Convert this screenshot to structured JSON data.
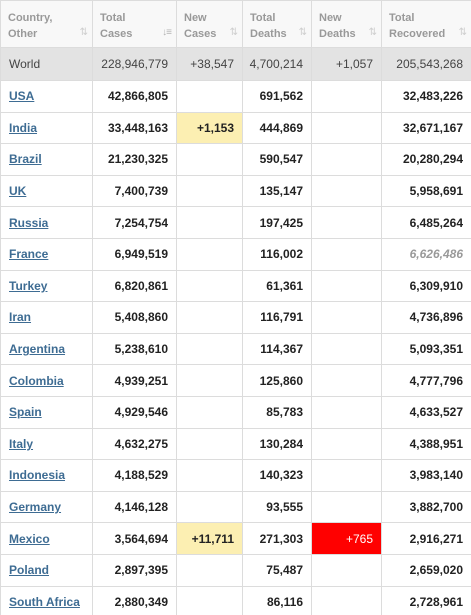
{
  "headers": [
    {
      "line1": "Country,",
      "line2": "Other",
      "sort_icon": "sort-both-icon"
    },
    {
      "line1": "Total",
      "line2": "Cases",
      "sort_icon": "sort-desc-icon"
    },
    {
      "line1": "New",
      "line2": "Cases",
      "sort_icon": "sort-both-icon"
    },
    {
      "line1": "Total",
      "line2": "Deaths",
      "sort_icon": "sort-both-icon"
    },
    {
      "line1": "New",
      "line2": "Deaths",
      "sort_icon": "sort-both-icon"
    },
    {
      "line1": "Total",
      "line2": "Recovered",
      "sort_icon": "sort-both-icon"
    }
  ],
  "world": {
    "country": "World",
    "total_cases": "228,946,779",
    "new_cases": "+38,547",
    "total_deaths": "4,700,214",
    "new_deaths": "+1,057",
    "total_recovered": "205,543,268"
  },
  "rows": [
    {
      "country": "USA",
      "total_cases": "42,866,805",
      "new_cases": "",
      "total_deaths": "691,562",
      "new_deaths": "",
      "total_recovered": "32,483,226"
    },
    {
      "country": "India",
      "total_cases": "33,448,163",
      "new_cases": "+1,153",
      "total_deaths": "444,869",
      "new_deaths": "",
      "total_recovered": "32,671,167"
    },
    {
      "country": "Brazil",
      "total_cases": "21,230,325",
      "new_cases": "",
      "total_deaths": "590,547",
      "new_deaths": "",
      "total_recovered": "20,280,294"
    },
    {
      "country": "UK",
      "total_cases": "7,400,739",
      "new_cases": "",
      "total_deaths": "135,147",
      "new_deaths": "",
      "total_recovered": "5,958,691"
    },
    {
      "country": "Russia",
      "total_cases": "7,254,754",
      "new_cases": "",
      "total_deaths": "197,425",
      "new_deaths": "",
      "total_recovered": "6,485,264"
    },
    {
      "country": "France",
      "total_cases": "6,949,519",
      "new_cases": "",
      "total_deaths": "116,002",
      "new_deaths": "",
      "total_recovered": "6,626,486"
    },
    {
      "country": "Turkey",
      "total_cases": "6,820,861",
      "new_cases": "",
      "total_deaths": "61,361",
      "new_deaths": "",
      "total_recovered": "6,309,910"
    },
    {
      "country": "Iran",
      "total_cases": "5,408,860",
      "new_cases": "",
      "total_deaths": "116,791",
      "new_deaths": "",
      "total_recovered": "4,736,896"
    },
    {
      "country": "Argentina",
      "total_cases": "5,238,610",
      "new_cases": "",
      "total_deaths": "114,367",
      "new_deaths": "",
      "total_recovered": "5,093,351"
    },
    {
      "country": "Colombia",
      "total_cases": "4,939,251",
      "new_cases": "",
      "total_deaths": "125,860",
      "new_deaths": "",
      "total_recovered": "4,777,796"
    },
    {
      "country": "Spain",
      "total_cases": "4,929,546",
      "new_cases": "",
      "total_deaths": "85,783",
      "new_deaths": "",
      "total_recovered": "4,633,527"
    },
    {
      "country": "Italy",
      "total_cases": "4,632,275",
      "new_cases": "",
      "total_deaths": "130,284",
      "new_deaths": "",
      "total_recovered": "4,388,951"
    },
    {
      "country": "Indonesia",
      "total_cases": "4,188,529",
      "new_cases": "",
      "total_deaths": "140,323",
      "new_deaths": "",
      "total_recovered": "3,983,140"
    },
    {
      "country": "Germany",
      "total_cases": "4,146,128",
      "new_cases": "",
      "total_deaths": "93,555",
      "new_deaths": "",
      "total_recovered": "3,882,700"
    },
    {
      "country": "Mexico",
      "total_cases": "3,564,694",
      "new_cases": "+11,711",
      "total_deaths": "271,303",
      "new_deaths": "+765",
      "total_recovered": "2,916,271"
    },
    {
      "country": "Poland",
      "total_cases": "2,897,395",
      "new_cases": "",
      "total_deaths": "75,487",
      "new_deaths": "",
      "total_recovered": "2,659,020"
    },
    {
      "country": "South Africa",
      "total_cases": "2,880,349",
      "new_cases": "",
      "total_deaths": "86,116",
      "new_deaths": "",
      "total_recovered": "2,728,961"
    }
  ],
  "colors": {
    "new_cases_highlight": "#fcefb2",
    "new_deaths_highlight": "#ff0000",
    "link": "#3e6c93",
    "world_row": "#e3e3e3"
  }
}
